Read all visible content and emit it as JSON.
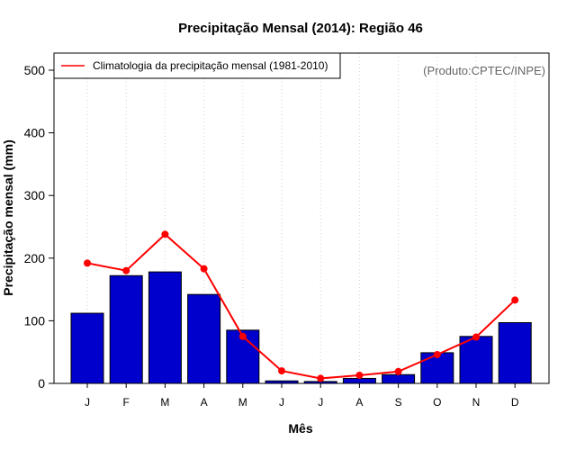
{
  "chart_data": {
    "type": "bar",
    "title": "Precipitação Mensal (2014): Região 46",
    "xlabel": "Mês",
    "ylabel": "Precipitação mensal (mm)",
    "ylim": [
      0,
      500
    ],
    "yticks": [
      0,
      100,
      200,
      300,
      400,
      500
    ],
    "categories": [
      "J",
      "F",
      "M",
      "A",
      "M",
      "J",
      "J",
      "A",
      "S",
      "O",
      "N",
      "D"
    ],
    "series": [
      {
        "name": "Precipitação mensal 2014",
        "kind": "bar",
        "color": "#0000cd",
        "values": [
          112,
          172,
          178,
          142,
          85,
          4,
          3,
          8,
          14,
          49,
          75,
          97
        ]
      },
      {
        "name": "Climatologia da precipitação mensal (1981-2010)",
        "kind": "line",
        "color": "#ff0000",
        "values": [
          192,
          180,
          238,
          183,
          75,
          20,
          8,
          13,
          19,
          46,
          74,
          133
        ]
      }
    ],
    "legend": {
      "position": "top-left",
      "label": "Climatologia da precipitação mensal (1981-2010)"
    },
    "credit": "(Produto:CPTEC/INPE)",
    "grid": "vertical dotted"
  }
}
